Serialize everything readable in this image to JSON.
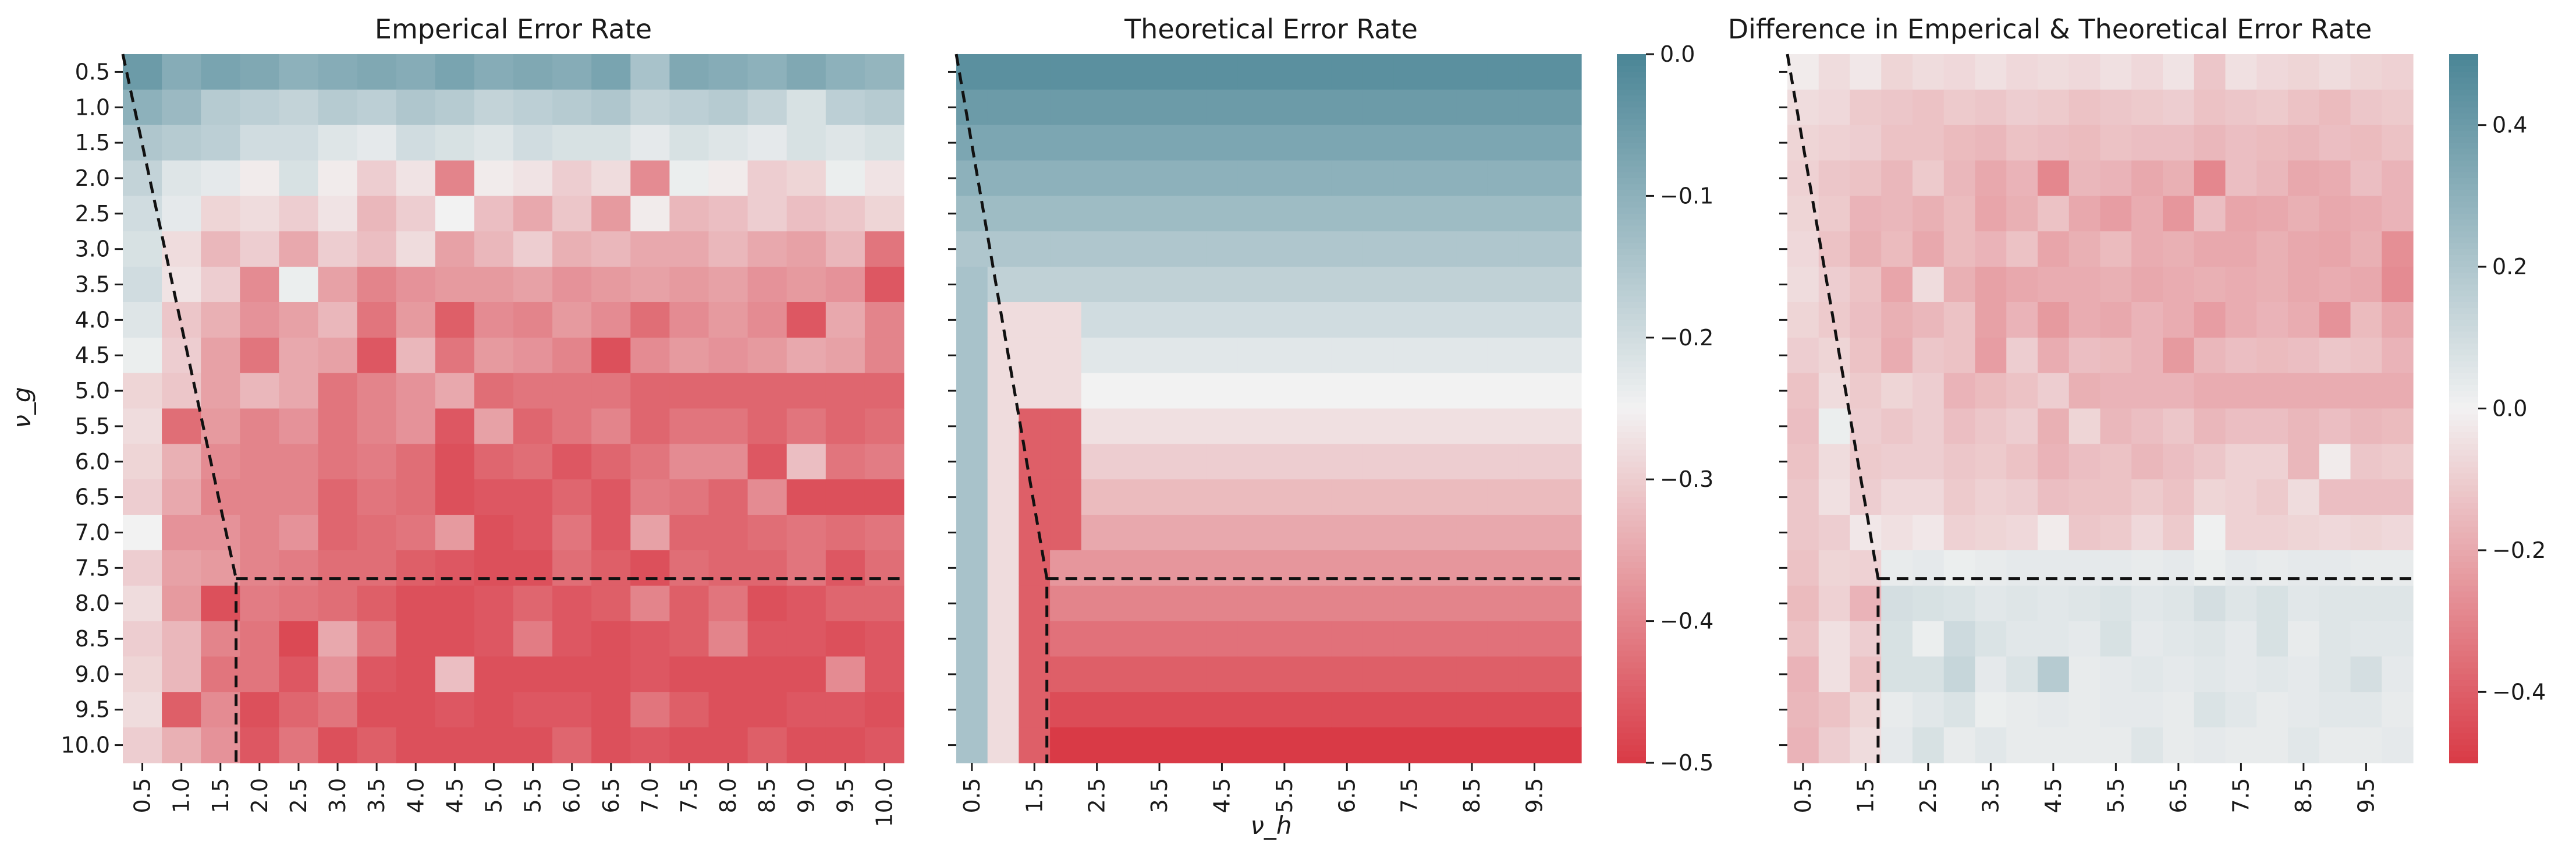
{
  "colors": {
    "low": "#d93a46",
    "mid": "#f2f2f2",
    "high": "#4a8596",
    "boundary": "#111111",
    "text": "#1a1a1a"
  },
  "axis_labels": {
    "y": "ν_g",
    "x": "ν_h"
  },
  "panels": [
    {
      "title": "Emperical Error Rate",
      "colorbar_ticks": []
    },
    {
      "title": "Theoretical Error Rate",
      "colorbar_ticks": [
        "0.0",
        "−0.1",
        "−0.2",
        "−0.3",
        "−0.4",
        "−0.5"
      ]
    },
    {
      "title": "Difference in Emperical & Theoretical Error Rate",
      "colorbar_ticks": [
        "0.4",
        "0.2",
        "0.0",
        "−0.2",
        "−0.4"
      ]
    }
  ],
  "chart_data": [
    {
      "type": "heatmap",
      "title": "Emperical Error Rate",
      "ylabel": "ν_g",
      "xlabel": "",
      "x": [
        "0.5",
        "1.0",
        "1.5",
        "2.0",
        "2.5",
        "3.0",
        "3.5",
        "4.0",
        "4.5",
        "5.0",
        "5.5",
        "6.0",
        "6.5",
        "7.0",
        "7.5",
        "8.0",
        "8.5",
        "9.0",
        "9.5",
        "10.0"
      ],
      "y": [
        "0.5",
        "1.0",
        "1.5",
        "2.0",
        "2.5",
        "3.0",
        "3.5",
        "4.0",
        "4.5",
        "5.0",
        "5.5",
        "6.0",
        "6.5",
        "7.0",
        "7.5",
        "8.0",
        "8.5",
        "9.0",
        "9.5",
        "10.0"
      ],
      "y_ticks": [
        "0.5",
        "1.0",
        "1.5",
        "2.0",
        "2.5",
        "3.0",
        "3.5",
        "4.0",
        "4.5",
        "5.0",
        "5.5",
        "6.0",
        "6.5",
        "7.0",
        "7.5",
        "8.0",
        "8.5",
        "9.0",
        "9.5",
        "10.0"
      ],
      "x_ticks": [
        "0.5",
        "1.0",
        "1.5",
        "2.0",
        "2.5",
        "3.0",
        "3.5",
        "4.0",
        "4.5",
        "5.0",
        "5.5",
        "6.0",
        "6.5",
        "7.0",
        "7.5",
        "8.0",
        "8.5",
        "9.0",
        "9.5",
        "10.0"
      ],
      "color_range": [
        -0.5,
        0.0
      ],
      "values": [
        [
          -0.05,
          -0.09,
          -0.07,
          -0.08,
          -0.1,
          -0.09,
          -0.08,
          -0.09,
          -0.07,
          -0.09,
          -0.08,
          -0.09,
          -0.07,
          -0.14,
          -0.08,
          -0.09,
          -0.1,
          -0.08,
          -0.1,
          -0.11
        ],
        [
          -0.1,
          -0.12,
          -0.16,
          -0.17,
          -0.18,
          -0.16,
          -0.17,
          -0.15,
          -0.16,
          -0.18,
          -0.17,
          -0.16,
          -0.15,
          -0.18,
          -0.17,
          -0.16,
          -0.18,
          -0.21,
          -0.17,
          -0.16
        ],
        [
          -0.15,
          -0.16,
          -0.17,
          -0.2,
          -0.2,
          -0.22,
          -0.23,
          -0.2,
          -0.21,
          -0.22,
          -0.2,
          -0.21,
          -0.21,
          -0.23,
          -0.21,
          -0.22,
          -0.23,
          -0.21,
          -0.22,
          -0.21
        ],
        [
          -0.18,
          -0.22,
          -0.23,
          -0.26,
          -0.21,
          -0.26,
          -0.3,
          -0.27,
          -0.4,
          -0.26,
          -0.27,
          -0.3,
          -0.28,
          -0.39,
          -0.24,
          -0.26,
          -0.3,
          -0.29,
          -0.24,
          -0.27
        ],
        [
          -0.2,
          -0.23,
          -0.29,
          -0.28,
          -0.3,
          -0.27,
          -0.33,
          -0.3,
          -0.25,
          -0.32,
          -0.35,
          -0.31,
          -0.37,
          -0.26,
          -0.33,
          -0.32,
          -0.3,
          -0.32,
          -0.31,
          -0.29
        ],
        [
          -0.21,
          -0.28,
          -0.33,
          -0.3,
          -0.35,
          -0.3,
          -0.32,
          -0.28,
          -0.36,
          -0.33,
          -0.3,
          -0.34,
          -0.33,
          -0.35,
          -0.35,
          -0.33,
          -0.35,
          -0.36,
          -0.33,
          -0.42
        ],
        [
          -0.2,
          -0.27,
          -0.3,
          -0.39,
          -0.24,
          -0.36,
          -0.4,
          -0.38,
          -0.37,
          -0.37,
          -0.36,
          -0.38,
          -0.37,
          -0.36,
          -0.37,
          -0.36,
          -0.38,
          -0.37,
          -0.38,
          -0.46
        ],
        [
          -0.22,
          -0.31,
          -0.34,
          -0.38,
          -0.36,
          -0.33,
          -0.42,
          -0.37,
          -0.45,
          -0.39,
          -0.4,
          -0.37,
          -0.39,
          -0.43,
          -0.39,
          -0.37,
          -0.39,
          -0.46,
          -0.35,
          -0.4
        ],
        [
          -0.24,
          -0.3,
          -0.36,
          -0.42,
          -0.35,
          -0.36,
          -0.46,
          -0.33,
          -0.42,
          -0.37,
          -0.38,
          -0.4,
          -0.47,
          -0.39,
          -0.37,
          -0.38,
          -0.37,
          -0.35,
          -0.36,
          -0.4
        ],
        [
          -0.29,
          -0.31,
          -0.36,
          -0.33,
          -0.35,
          -0.42,
          -0.4,
          -0.38,
          -0.35,
          -0.43,
          -0.42,
          -0.42,
          -0.42,
          -0.44,
          -0.44,
          -0.44,
          -0.44,
          -0.44,
          -0.44,
          -0.44
        ],
        [
          -0.28,
          -0.43,
          -0.37,
          -0.4,
          -0.38,
          -0.42,
          -0.4,
          -0.38,
          -0.46,
          -0.36,
          -0.44,
          -0.42,
          -0.4,
          -0.44,
          -0.42,
          -0.42,
          -0.44,
          -0.42,
          -0.44,
          -0.43
        ],
        [
          -0.29,
          -0.34,
          -0.39,
          -0.4,
          -0.4,
          -0.42,
          -0.41,
          -0.43,
          -0.47,
          -0.44,
          -0.43,
          -0.46,
          -0.44,
          -0.42,
          -0.39,
          -0.39,
          -0.46,
          -0.32,
          -0.42,
          -0.41
        ],
        [
          -0.3,
          -0.35,
          -0.4,
          -0.4,
          -0.4,
          -0.44,
          -0.42,
          -0.43,
          -0.47,
          -0.46,
          -0.46,
          -0.44,
          -0.46,
          -0.41,
          -0.42,
          -0.44,
          -0.39,
          -0.47,
          -0.47,
          -0.47
        ],
        [
          -0.25,
          -0.38,
          -0.38,
          -0.4,
          -0.38,
          -0.44,
          -0.43,
          -0.42,
          -0.37,
          -0.47,
          -0.46,
          -0.42,
          -0.46,
          -0.36,
          -0.44,
          -0.44,
          -0.43,
          -0.42,
          -0.43,
          -0.42
        ],
        [
          -0.3,
          -0.36,
          -0.37,
          -0.4,
          -0.41,
          -0.43,
          -0.43,
          -0.45,
          -0.46,
          -0.47,
          -0.47,
          -0.43,
          -0.45,
          -0.47,
          -0.43,
          -0.44,
          -0.44,
          -0.42,
          -0.46,
          -0.43
        ],
        [
          -0.28,
          -0.37,
          -0.47,
          -0.41,
          -0.42,
          -0.43,
          -0.45,
          -0.47,
          -0.47,
          -0.46,
          -0.44,
          -0.46,
          -0.45,
          -0.4,
          -0.45,
          -0.42,
          -0.47,
          -0.46,
          -0.44,
          -0.44
        ],
        [
          -0.3,
          -0.33,
          -0.4,
          -0.42,
          -0.48,
          -0.35,
          -0.42,
          -0.47,
          -0.47,
          -0.46,
          -0.41,
          -0.46,
          -0.47,
          -0.46,
          -0.45,
          -0.4,
          -0.46,
          -0.46,
          -0.47,
          -0.46
        ],
        [
          -0.29,
          -0.33,
          -0.42,
          -0.42,
          -0.46,
          -0.38,
          -0.46,
          -0.47,
          -0.32,
          -0.47,
          -0.47,
          -0.47,
          -0.47,
          -0.46,
          -0.47,
          -0.47,
          -0.47,
          -0.47,
          -0.39,
          -0.46
        ],
        [
          -0.28,
          -0.45,
          -0.39,
          -0.47,
          -0.44,
          -0.42,
          -0.47,
          -0.47,
          -0.46,
          -0.47,
          -0.46,
          -0.46,
          -0.47,
          -0.42,
          -0.45,
          -0.47,
          -0.47,
          -0.46,
          -0.46,
          -0.47
        ],
        [
          -0.3,
          -0.34,
          -0.38,
          -0.46,
          -0.42,
          -0.47,
          -0.45,
          -0.47,
          -0.47,
          -0.47,
          -0.47,
          -0.44,
          -0.47,
          -0.46,
          -0.47,
          -0.47,
          -0.45,
          -0.47,
          -0.47,
          -0.46
        ]
      ],
      "boundary": {
        "diag_start": [
          0.5,
          0.5
        ],
        "corner": [
          1.75,
          7.75
        ],
        "horizontal_to": 10.0,
        "vertical_to": 10.0
      }
    },
    {
      "type": "heatmap",
      "title": "Theoretical Error Rate",
      "ylabel": "",
      "xlabel": "ν_h",
      "x": [
        "0.5",
        "1.0",
        "1.5",
        "2.0",
        "2.5",
        "3.0",
        "3.5",
        "4.0",
        "4.5",
        "5.0",
        "5.5",
        "6.0",
        "6.5",
        "7.0",
        "7.5",
        "8.0",
        "8.5",
        "9.0",
        "9.5",
        "10.0"
      ],
      "y": [
        "0.5",
        "1.0",
        "1.5",
        "2.0",
        "2.5",
        "3.0",
        "3.5",
        "4.0",
        "4.5",
        "5.0",
        "5.5",
        "6.0",
        "6.5",
        "7.0",
        "7.5",
        "8.0",
        "8.5",
        "9.0",
        "9.5",
        "10.0"
      ],
      "y_ticks": [],
      "x_ticks": [
        "0.5",
        "1.5",
        "2.5",
        "3.5",
        "4.5",
        "5.5",
        "6.5",
        "7.5",
        "8.5",
        "9.5"
      ],
      "color_range": [
        -0.5,
        0.0
      ],
      "row_values": [
        -0.025,
        -0.05,
        -0.075,
        -0.1,
        -0.125,
        -0.15,
        -0.175,
        -0.2,
        -0.225,
        -0.25,
        -0.275,
        -0.3,
        -0.325,
        -0.35,
        -0.375,
        -0.4,
        -0.425,
        -0.45,
        -0.475,
        -0.5
      ],
      "column_overrides": [
        {
          "col": 0,
          "from_row": 6,
          "value": -0.14
        },
        {
          "col": 1,
          "from_row": 7,
          "value": -0.28
        },
        {
          "col": 2,
          "from_row": 10,
          "value": -0.45
        },
        {
          "col": 3,
          "from_row": 14,
          "value": -0.5
        }
      ],
      "boundary": {
        "diag_start": [
          0.5,
          0.5
        ],
        "corner": [
          1.75,
          7.75
        ],
        "horizontal_to": 10.0,
        "vertical_to": 10.0
      }
    },
    {
      "type": "heatmap",
      "title": "Difference in Emperical & Theoretical Error Rate",
      "ylabel": "",
      "xlabel": "",
      "x": [
        "0.5",
        "1.0",
        "1.5",
        "2.0",
        "2.5",
        "3.0",
        "3.5",
        "4.0",
        "4.5",
        "5.0",
        "5.5",
        "6.0",
        "6.5",
        "7.0",
        "7.5",
        "8.0",
        "8.5",
        "9.0",
        "9.5",
        "10.0"
      ],
      "y": [
        "0.5",
        "1.0",
        "1.5",
        "2.0",
        "2.5",
        "3.0",
        "3.5",
        "4.0",
        "4.5",
        "5.0",
        "5.5",
        "6.0",
        "6.5",
        "7.0",
        "7.5",
        "8.0",
        "8.5",
        "9.0",
        "9.5",
        "10.0"
      ],
      "y_ticks": [],
      "x_ticks": [
        "0.5",
        "1.5",
        "2.5",
        "3.5",
        "4.5",
        "5.5",
        "6.5",
        "7.5",
        "8.5",
        "9.5"
      ],
      "color_range": [
        -0.5,
        0.5
      ],
      "values": [
        [
          -0.02,
          -0.06,
          -0.03,
          -0.08,
          -0.06,
          -0.07,
          -0.05,
          -0.07,
          -0.06,
          -0.07,
          -0.05,
          -0.07,
          -0.04,
          -0.12,
          -0.05,
          -0.07,
          -0.08,
          -0.06,
          -0.08,
          -0.09
        ],
        [
          -0.06,
          -0.07,
          -0.11,
          -0.12,
          -0.13,
          -0.11,
          -0.12,
          -0.1,
          -0.11,
          -0.13,
          -0.12,
          -0.11,
          -0.1,
          -0.13,
          -0.12,
          -0.11,
          -0.13,
          -0.15,
          -0.12,
          -0.11
        ],
        [
          -0.08,
          -0.09,
          -0.1,
          -0.13,
          -0.13,
          -0.15,
          -0.16,
          -0.13,
          -0.14,
          -0.15,
          -0.13,
          -0.14,
          -0.14,
          -0.16,
          -0.14,
          -0.15,
          -0.16,
          -0.14,
          -0.15,
          -0.13
        ],
        [
          -0.09,
          -0.12,
          -0.13,
          -0.16,
          -0.11,
          -0.16,
          -0.2,
          -0.17,
          -0.29,
          -0.16,
          -0.17,
          -0.2,
          -0.18,
          -0.29,
          -0.14,
          -0.16,
          -0.2,
          -0.19,
          -0.14,
          -0.17
        ],
        [
          -0.08,
          -0.11,
          -0.17,
          -0.16,
          -0.18,
          -0.15,
          -0.21,
          -0.18,
          -0.13,
          -0.2,
          -0.23,
          -0.19,
          -0.25,
          -0.14,
          -0.21,
          -0.2,
          -0.18,
          -0.2,
          -0.19,
          -0.17
        ],
        [
          -0.07,
          -0.13,
          -0.18,
          -0.15,
          -0.2,
          -0.15,
          -0.17,
          -0.13,
          -0.21,
          -0.18,
          -0.15,
          -0.19,
          -0.18,
          -0.2,
          -0.2,
          -0.18,
          -0.2,
          -0.21,
          -0.18,
          -0.27
        ],
        [
          -0.06,
          -0.1,
          -0.13,
          -0.21,
          -0.06,
          -0.18,
          -0.22,
          -0.2,
          -0.19,
          -0.19,
          -0.18,
          -0.2,
          -0.19,
          -0.18,
          -0.19,
          -0.18,
          -0.2,
          -0.19,
          -0.2,
          -0.28
        ],
        [
          -0.08,
          -0.11,
          -0.14,
          -0.18,
          -0.16,
          -0.13,
          -0.22,
          -0.17,
          -0.24,
          -0.19,
          -0.2,
          -0.17,
          -0.19,
          -0.23,
          -0.19,
          -0.17,
          -0.19,
          -0.26,
          -0.15,
          -0.2
        ],
        [
          -0.1,
          -0.08,
          -0.13,
          -0.19,
          -0.12,
          -0.13,
          -0.23,
          -0.1,
          -0.19,
          -0.14,
          -0.15,
          -0.17,
          -0.24,
          -0.16,
          -0.14,
          -0.15,
          -0.14,
          -0.12,
          -0.13,
          -0.17
        ],
        [
          -0.13,
          -0.06,
          -0.11,
          -0.08,
          -0.1,
          -0.17,
          -0.15,
          -0.13,
          -0.1,
          -0.18,
          -0.17,
          -0.17,
          -0.17,
          -0.19,
          -0.19,
          -0.19,
          -0.19,
          -0.19,
          -0.19,
          -0.19
        ],
        [
          -0.14,
          0.02,
          -0.1,
          -0.12,
          -0.1,
          -0.14,
          -0.12,
          -0.1,
          -0.18,
          -0.08,
          -0.16,
          -0.14,
          -0.12,
          -0.16,
          -0.14,
          -0.14,
          -0.16,
          -0.14,
          -0.16,
          -0.15
        ],
        [
          -0.13,
          -0.06,
          -0.11,
          -0.1,
          -0.1,
          -0.12,
          -0.11,
          -0.13,
          -0.17,
          -0.14,
          -0.13,
          -0.16,
          -0.14,
          -0.12,
          -0.09,
          -0.09,
          -0.16,
          -0.02,
          -0.12,
          -0.11
        ],
        [
          -0.12,
          -0.05,
          -0.1,
          -0.07,
          -0.07,
          -0.11,
          -0.09,
          -0.1,
          -0.14,
          -0.13,
          -0.13,
          -0.11,
          -0.13,
          -0.08,
          -0.09,
          -0.11,
          -0.06,
          -0.14,
          -0.14,
          -0.14
        ],
        [
          -0.12,
          -0.1,
          -0.03,
          -0.05,
          -0.03,
          -0.09,
          -0.08,
          -0.07,
          -0.02,
          -0.12,
          -0.11,
          -0.07,
          -0.11,
          0.01,
          -0.09,
          -0.09,
          -0.08,
          -0.07,
          -0.08,
          -0.07
        ],
        [
          -0.13,
          -0.08,
          -0.09,
          0.03,
          0.04,
          0.02,
          0.03,
          0.04,
          0.04,
          0.04,
          0.04,
          0.03,
          0.04,
          0.02,
          0.04,
          0.03,
          0.04,
          0.04,
          0.03,
          0.03
        ],
        [
          -0.15,
          -0.09,
          -0.17,
          0.09,
          0.08,
          0.07,
          0.05,
          0.06,
          0.05,
          0.06,
          0.07,
          0.05,
          0.06,
          0.09,
          0.06,
          0.08,
          0.05,
          0.06,
          0.06,
          0.06
        ],
        [
          -0.13,
          -0.05,
          -0.1,
          0.08,
          0.02,
          0.11,
          0.07,
          0.05,
          0.05,
          0.04,
          0.08,
          0.04,
          0.05,
          0.06,
          0.04,
          0.08,
          0.03,
          0.06,
          0.05,
          0.05
        ],
        [
          -0.17,
          -0.05,
          -0.13,
          0.08,
          0.08,
          0.13,
          0.04,
          0.07,
          0.18,
          0.03,
          0.04,
          0.05,
          0.04,
          0.05,
          0.04,
          0.05,
          0.04,
          0.06,
          0.09,
          0.04
        ],
        [
          -0.16,
          -0.13,
          -0.08,
          0.03,
          0.05,
          0.07,
          0.02,
          0.03,
          0.04,
          0.03,
          0.04,
          0.04,
          0.03,
          0.07,
          0.05,
          0.03,
          0.04,
          0.05,
          0.05,
          0.03
        ],
        [
          -0.17,
          -0.1,
          -0.06,
          0.04,
          0.08,
          0.03,
          0.05,
          0.03,
          0.03,
          0.03,
          0.03,
          0.06,
          0.03,
          0.04,
          0.03,
          0.03,
          0.05,
          0.03,
          0.03,
          0.04
        ]
      ],
      "boundary": {
        "diag_start": [
          0.5,
          0.5
        ],
        "corner": [
          1.75,
          7.75
        ],
        "horizontal_to": 10.0,
        "vertical_to": 10.0
      }
    }
  ]
}
